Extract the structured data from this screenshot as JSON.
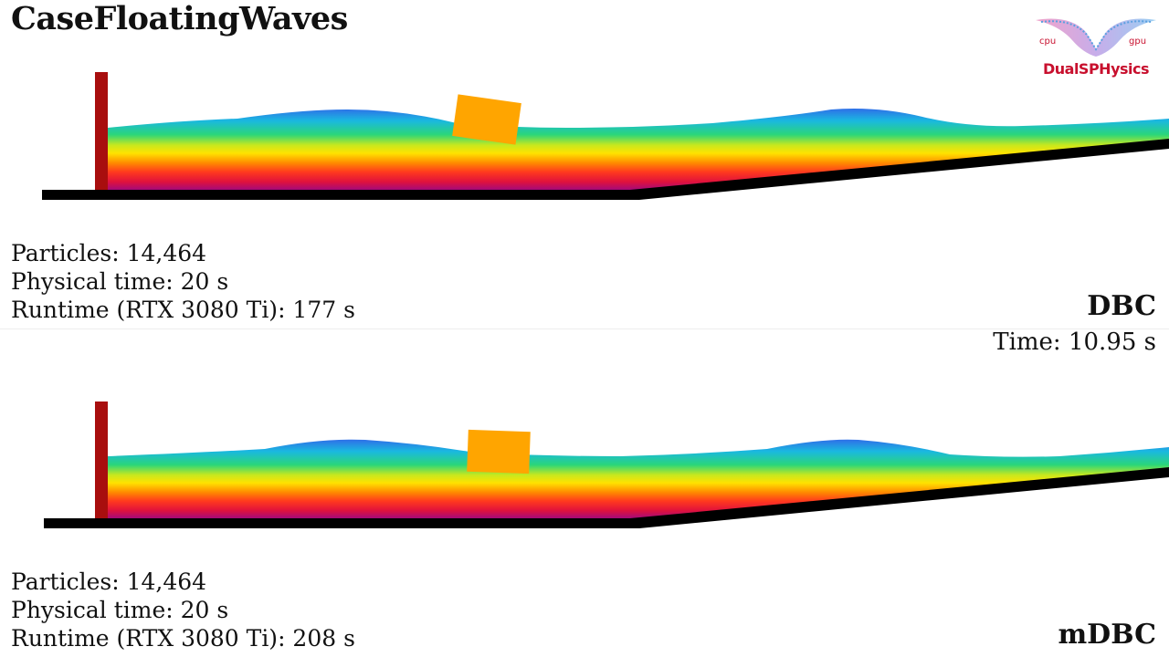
{
  "title": "CaseFloatingWaves",
  "logo": {
    "name": "DualSPHysics",
    "cpu": "cpu",
    "gpu": "gpu"
  },
  "time_label": "Time: 10.95 s",
  "panels": [
    {
      "method": "DBC",
      "particles": "Particles: 14,464",
      "physical_time": "Physical time: 20 s",
      "runtime": "Runtime (RTX 3080 Ti): 177 s"
    },
    {
      "method": "mDBC",
      "particles": "Particles: 14,464",
      "physical_time": "Physical time: 20 s",
      "runtime": "Runtime (RTX 3080 Ti): 208 s"
    }
  ],
  "colors": {
    "wall": "#a80e0e",
    "floating_box": "#ffa500",
    "ground": "#000000",
    "fluid_gradient": [
      "#2f6fe8",
      "#1ab8e0",
      "#2ad67a",
      "#c8e81e",
      "#ffe200",
      "#ff8a00",
      "#ff3a1e",
      "#e0123c",
      "#a40a7a"
    ]
  }
}
